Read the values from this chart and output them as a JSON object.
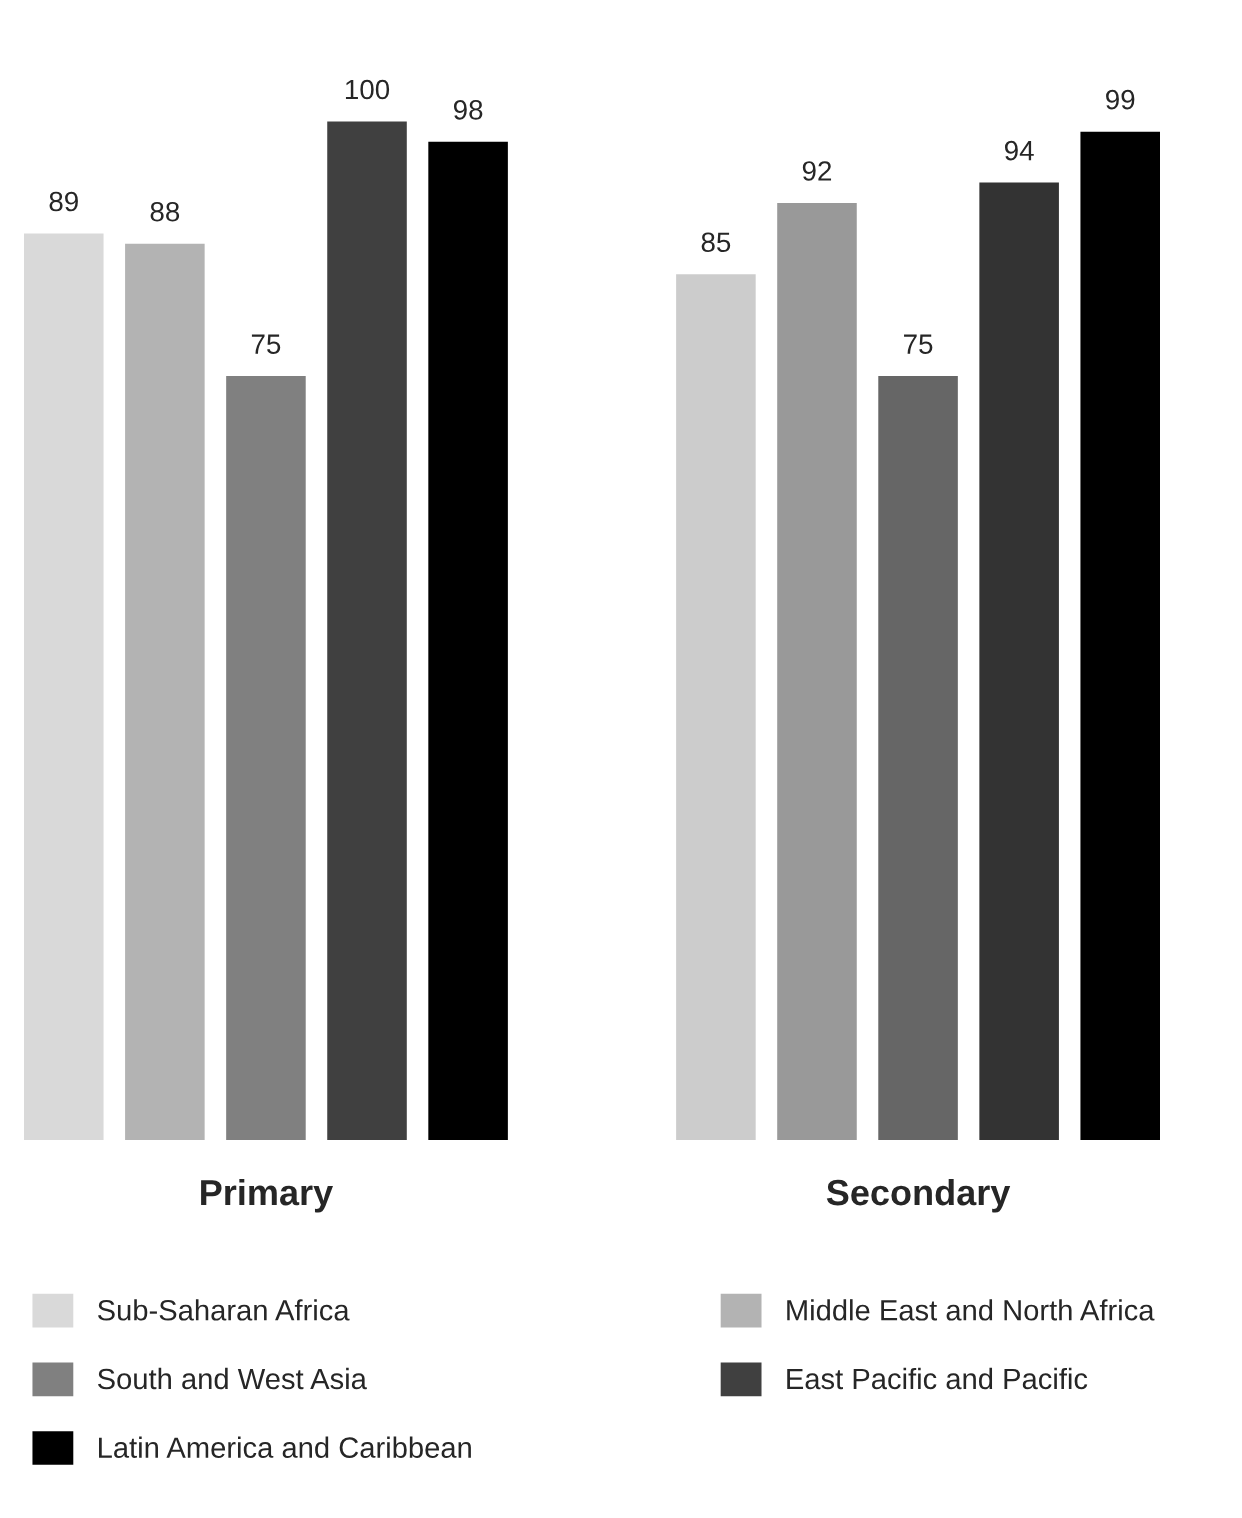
{
  "chart_data": {
    "type": "bar",
    "categories": [
      "Primary",
      "Secondary"
    ],
    "series": [
      {
        "name": "Sub-Saharan Africa",
        "color": "#d9d9d9",
        "colors": [
          "#d9d9d9",
          "#cccccc"
        ],
        "values": [
          89,
          85
        ]
      },
      {
        "name": "Middle East and North Africa",
        "color": "#b3b3b3",
        "colors": [
          "#b3b3b3",
          "#999999"
        ],
        "values": [
          88,
          92
        ]
      },
      {
        "name": "South and West Asia",
        "color": "#808080",
        "colors": [
          "#808080",
          "#666666"
        ],
        "values": [
          75,
          75
        ]
      },
      {
        "name": "East Pacific and Pacific",
        "color": "#404040",
        "colors": [
          "#404040",
          "#333333"
        ],
        "values": [
          100,
          94
        ]
      },
      {
        "name": "Latin America and Caribbean",
        "color": "#000000",
        "colors": [
          "#000000",
          "#000000"
        ],
        "values": [
          98,
          99
        ]
      }
    ],
    "data_labels": true,
    "tick_labels": "x",
    "grid": false,
    "legend": "bottom"
  }
}
